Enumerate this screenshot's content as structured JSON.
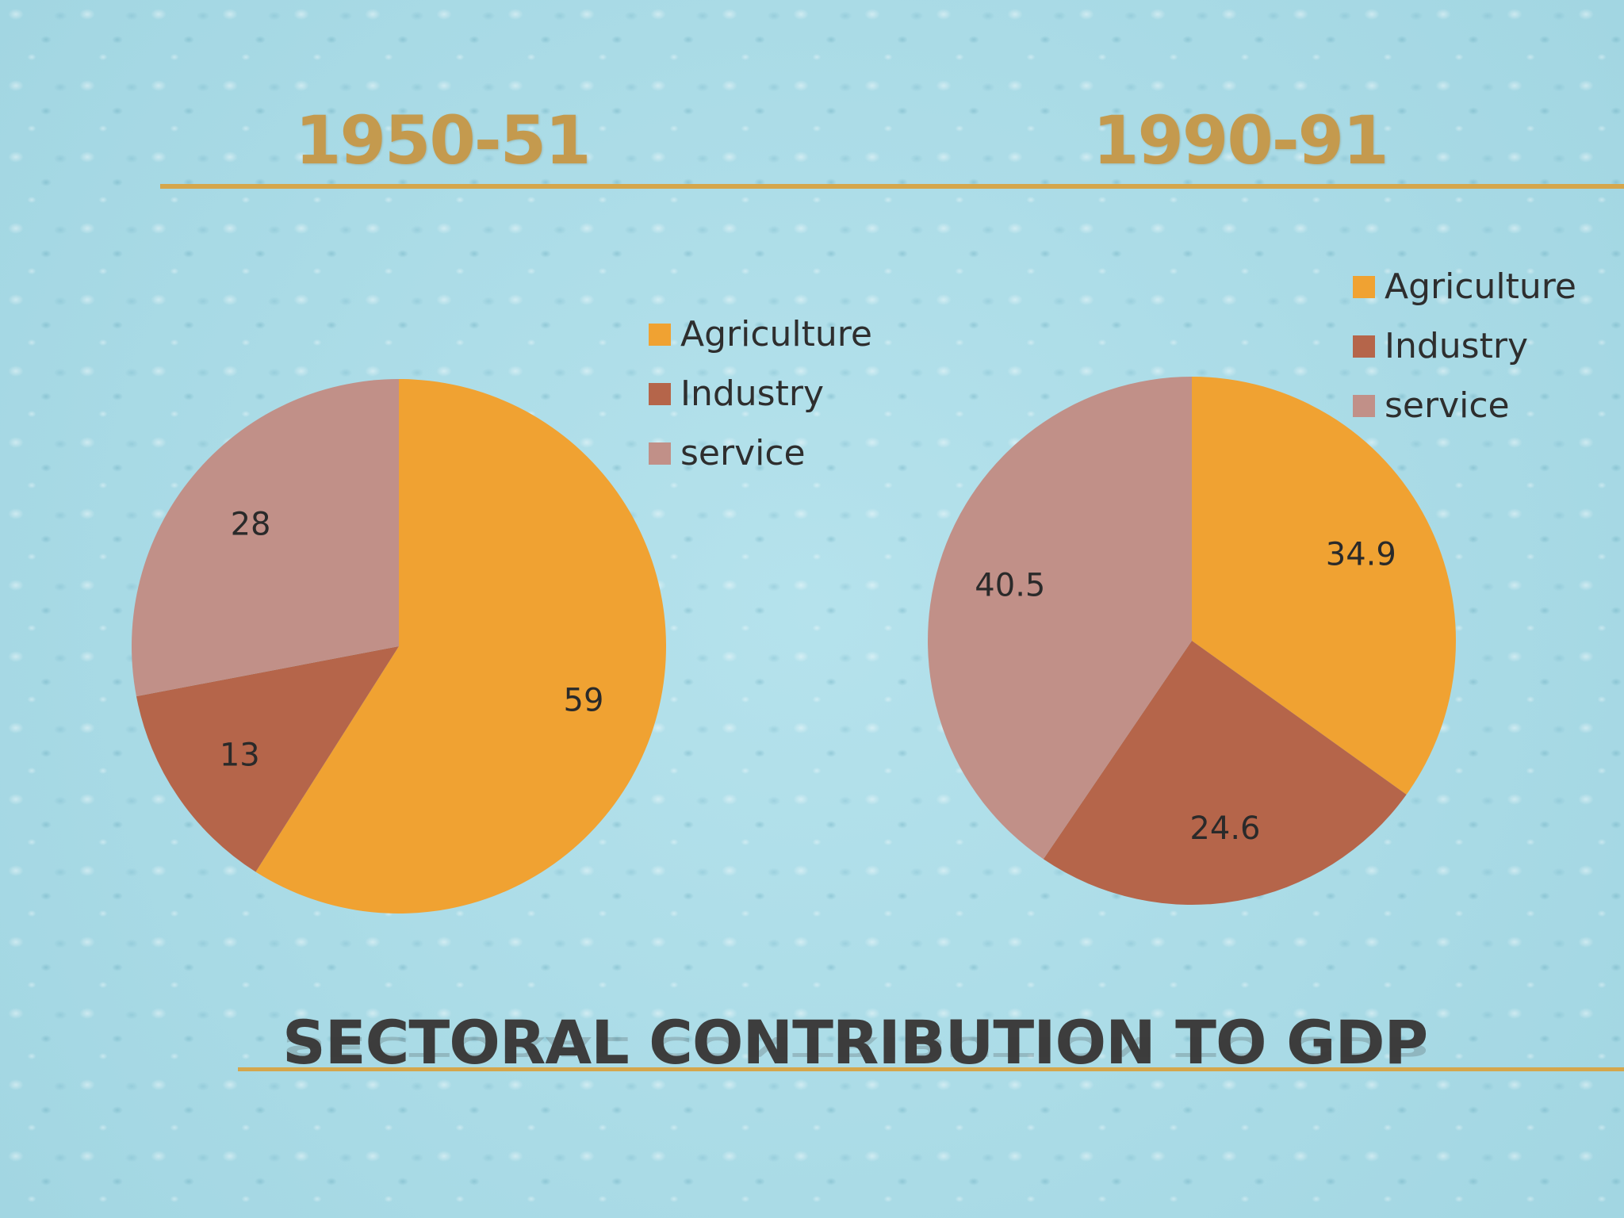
{
  "slide": {
    "title": "SECTORAL CONTRIBUTION TO GDP"
  },
  "colors": {
    "agriculture": "#f0a232",
    "industry": "#b5654a",
    "service": "#c19088"
  },
  "chart_data": [
    {
      "type": "pie",
      "title": "1950-51",
      "categories": [
        "Agriculture",
        "Industry",
        "service"
      ],
      "values": [
        59,
        13,
        28
      ],
      "data_labels": [
        "59",
        "13",
        "28"
      ],
      "legend": "right",
      "start_angle": "12 o'clock, clockwise"
    },
    {
      "type": "pie",
      "title": "1990-91",
      "categories": [
        "Agriculture",
        "Industry",
        "service"
      ],
      "values": [
        34.9,
        24.6,
        40.5
      ],
      "data_labels": [
        "34.9",
        "24.6",
        "40.5"
      ],
      "legend": "top-right",
      "start_angle": "12 o'clock, clockwise"
    }
  ]
}
